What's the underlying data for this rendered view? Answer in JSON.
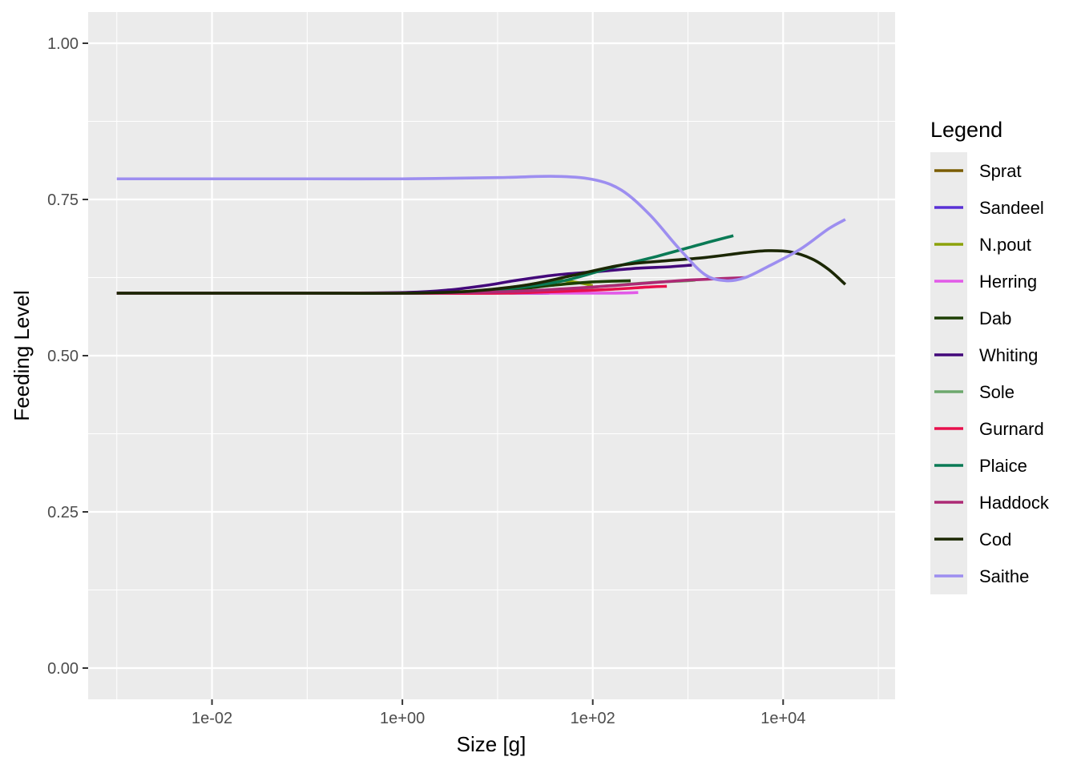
{
  "chart_data": {
    "type": "line",
    "xlabel": "Size [g]",
    "ylabel": "Feeding Level",
    "x_scale": "log10",
    "xlim": [
      0.0005,
      150000
    ],
    "ylim": [
      -0.05,
      1.05
    ],
    "x_ticks": [
      {
        "value": 0.01,
        "label": "1e-02"
      },
      {
        "value": 1,
        "label": "1e+00"
      },
      {
        "value": 100,
        "label": "1e+02"
      },
      {
        "value": 10000,
        "label": "1e+04"
      }
    ],
    "y_ticks": [
      {
        "value": 0.0,
        "label": "0.00"
      },
      {
        "value": 0.25,
        "label": "0.25"
      },
      {
        "value": 0.5,
        "label": "0.50"
      },
      {
        "value": 0.75,
        "label": "0.75"
      },
      {
        "value": 1.0,
        "label": "1.00"
      }
    ],
    "grid": true,
    "legend_title": "Legend",
    "legend_position": "right",
    "series": [
      {
        "name": "Sprat",
        "color": "#7a5c00",
        "points": [
          [
            0.001,
            0.6
          ],
          [
            0.01,
            0.6
          ],
          [
            0.1,
            0.6
          ],
          [
            1,
            0.6
          ],
          [
            3,
            0.6
          ],
          [
            10,
            0.6
          ],
          [
            30,
            0.6
          ]
        ]
      },
      {
        "name": "Sandeel",
        "color": "#5a31d6",
        "points": [
          [
            0.001,
            0.6
          ],
          [
            0.01,
            0.6
          ],
          [
            0.1,
            0.6
          ],
          [
            1,
            0.6
          ],
          [
            5,
            0.601
          ],
          [
            20,
            0.6
          ],
          [
            35,
            0.6
          ]
        ]
      },
      {
        "name": "N.pout",
        "color": "#8ca20a",
        "points": [
          [
            0.001,
            0.6
          ],
          [
            0.01,
            0.6
          ],
          [
            0.1,
            0.6
          ],
          [
            1,
            0.6
          ],
          [
            5,
            0.603
          ],
          [
            15,
            0.61
          ],
          [
            40,
            0.62
          ],
          [
            70,
            0.617
          ],
          [
            100,
            0.612
          ]
        ]
      },
      {
        "name": "Herring",
        "color": "#e25ae8",
        "points": [
          [
            0.001,
            0.6
          ],
          [
            0.01,
            0.6
          ],
          [
            0.1,
            0.6
          ],
          [
            1,
            0.6
          ],
          [
            10,
            0.6
          ],
          [
            50,
            0.6
          ],
          [
            150,
            0.6
          ],
          [
            300,
            0.601
          ]
        ]
      },
      {
        "name": "Dab",
        "color": "#1d3f04",
        "points": [
          [
            0.001,
            0.6
          ],
          [
            0.01,
            0.6
          ],
          [
            0.1,
            0.6
          ],
          [
            1,
            0.6
          ],
          [
            5,
            0.601
          ],
          [
            15,
            0.606
          ],
          [
            40,
            0.613
          ],
          [
            100,
            0.618
          ],
          [
            250,
            0.62
          ]
        ]
      },
      {
        "name": "Whiting",
        "color": "#43087a",
        "points": [
          [
            0.001,
            0.6
          ],
          [
            0.01,
            0.6
          ],
          [
            0.1,
            0.6
          ],
          [
            1,
            0.601
          ],
          [
            3,
            0.605
          ],
          [
            8,
            0.613
          ],
          [
            15,
            0.62
          ],
          [
            40,
            0.629
          ],
          [
            100,
            0.634
          ],
          [
            300,
            0.64
          ],
          [
            600,
            0.642
          ],
          [
            1100,
            0.645
          ]
        ]
      },
      {
        "name": "Sole",
        "color": "#6ca86c",
        "points": [
          [
            0.001,
            0.6
          ],
          [
            0.01,
            0.6
          ],
          [
            0.1,
            0.6
          ],
          [
            1,
            0.6
          ],
          [
            10,
            0.602
          ],
          [
            50,
            0.606
          ],
          [
            150,
            0.612
          ],
          [
            400,
            0.617
          ],
          [
            1000,
            0.62
          ],
          [
            1200,
            0.621
          ]
        ]
      },
      {
        "name": "Gurnard",
        "color": "#e8104c",
        "points": [
          [
            0.001,
            0.6
          ],
          [
            0.01,
            0.6
          ],
          [
            0.1,
            0.6
          ],
          [
            1,
            0.6
          ],
          [
            10,
            0.6
          ],
          [
            50,
            0.603
          ],
          [
            150,
            0.606
          ],
          [
            400,
            0.61
          ],
          [
            600,
            0.611
          ]
        ]
      },
      {
        "name": "Plaice",
        "color": "#0a7a55",
        "points": [
          [
            0.001,
            0.6
          ],
          [
            0.01,
            0.6
          ],
          [
            0.1,
            0.6
          ],
          [
            1,
            0.6
          ],
          [
            5,
            0.602
          ],
          [
            15,
            0.608
          ],
          [
            50,
            0.62
          ],
          [
            150,
            0.64
          ],
          [
            500,
            0.66
          ],
          [
            1500,
            0.68
          ],
          [
            3000,
            0.692
          ]
        ]
      },
      {
        "name": "Haddock",
        "color": "#ad2a75",
        "points": [
          [
            0.001,
            0.6
          ],
          [
            0.01,
            0.6
          ],
          [
            0.1,
            0.6
          ],
          [
            1,
            0.6
          ],
          [
            10,
            0.602
          ],
          [
            50,
            0.607
          ],
          [
            200,
            0.613
          ],
          [
            800,
            0.62
          ],
          [
            2000,
            0.623
          ],
          [
            4000,
            0.625
          ]
        ]
      },
      {
        "name": "Cod",
        "color": "#1b2703",
        "points": [
          [
            0.001,
            0.6
          ],
          [
            0.01,
            0.6
          ],
          [
            0.1,
            0.6
          ],
          [
            1,
            0.6
          ],
          [
            5,
            0.603
          ],
          [
            20,
            0.613
          ],
          [
            60,
            0.628
          ],
          [
            200,
            0.645
          ],
          [
            600,
            0.652
          ],
          [
            1500,
            0.657
          ],
          [
            4000,
            0.665
          ],
          [
            7000,
            0.668
          ],
          [
            12000,
            0.666
          ],
          [
            20000,
            0.655
          ],
          [
            30000,
            0.638
          ],
          [
            45000,
            0.614
          ]
        ]
      },
      {
        "name": "Saithe",
        "color": "#9d8ef0",
        "points": [
          [
            0.001,
            0.783
          ],
          [
            0.01,
            0.783
          ],
          [
            0.1,
            0.783
          ],
          [
            1,
            0.783
          ],
          [
            10,
            0.785
          ],
          [
            40,
            0.787
          ],
          [
            100,
            0.782
          ],
          [
            200,
            0.765
          ],
          [
            400,
            0.725
          ],
          [
            800,
            0.672
          ],
          [
            1500,
            0.63
          ],
          [
            2500,
            0.62
          ],
          [
            4000,
            0.625
          ],
          [
            7000,
            0.643
          ],
          [
            15000,
            0.67
          ],
          [
            30000,
            0.703
          ],
          [
            45000,
            0.718
          ]
        ]
      }
    ]
  }
}
